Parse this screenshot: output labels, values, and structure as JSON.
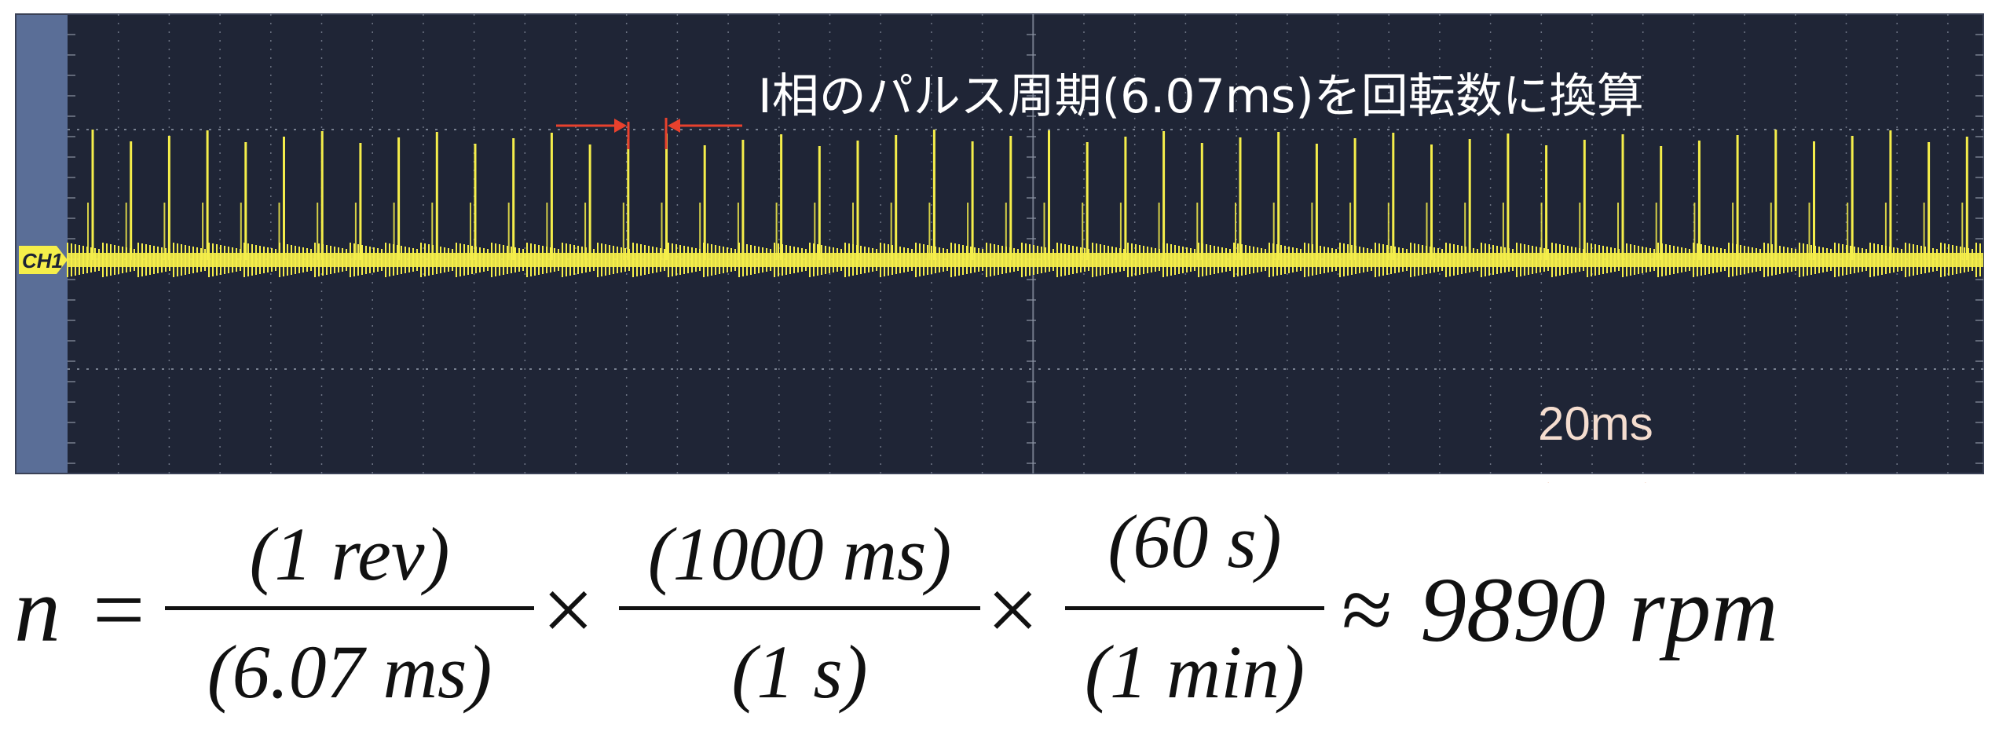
{
  "scope": {
    "channel_label": "CH1",
    "annotation": "I相のパルス周期(6.07ms)を回転数に換算",
    "timescale_label": "20ms",
    "pulse_period_ms": 6.07,
    "colors": {
      "background": "#1f2536",
      "left_strip": "#5a6e97",
      "grid": "#8e96a6",
      "trace": "#f5ee4a",
      "marker": "#e8412d",
      "scale_arrow": "#f6dccd"
    }
  },
  "equation": {
    "lhs": "n",
    "equals": "=",
    "frac1": {
      "num": "(1 rev)",
      "den": "(6.07 ms)"
    },
    "times1": "×",
    "frac2": {
      "num": "(1000 ms)",
      "den": "(1 s)"
    },
    "times2": "×",
    "frac3": {
      "num": "(60 s)",
      "den": "(1 min)"
    },
    "approx": "≈",
    "result": "9890 rpm"
  }
}
